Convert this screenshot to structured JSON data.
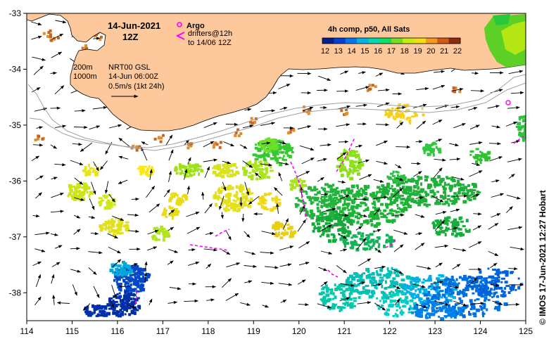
{
  "title": {
    "date": "14-Jun-2021",
    "time": "12Z"
  },
  "legend": {
    "argo_label": "Argo",
    "drifters_label": "drifters@12h",
    "drifters_sub": "to 14/06 12Z",
    "argo_color": "#ff00ff",
    "drifter_color": "#ff00ff"
  },
  "product": {
    "line1a": "200m",
    "line1b": "NRT00 GSL",
    "line2a": "1000m",
    "line2b": "14-Jun 06:00Z",
    "scale_label": "0.5m/s (1kt 24h)"
  },
  "colorbar": {
    "title": "4h comp, p50, All Sats",
    "labels": [
      "12",
      "13",
      "14",
      "15",
      "16",
      "17",
      "18",
      "19",
      "20",
      "21",
      "22"
    ],
    "colors": [
      "#001f8c",
      "#0040d8",
      "#0078f0",
      "#00b4e8",
      "#00d8b0",
      "#10e060",
      "#70e020",
      "#c8ec10",
      "#f4e010",
      "#f49a20",
      "#d45a14",
      "#8c2a0c"
    ]
  },
  "chart_data": {
    "type": "map",
    "xlim": [
      114,
      125
    ],
    "ylim": [
      -38.5,
      -33
    ],
    "x_ticks": [
      "114",
      "115",
      "116",
      "117",
      "118",
      "119",
      "120",
      "121",
      "122",
      "123",
      "124",
      "125"
    ],
    "y_ticks": [
      "-33",
      "-34",
      "-35",
      "-36",
      "-37",
      "-38"
    ],
    "colors": {
      "land": "#fcc89c",
      "isobath": "#a0a0a0",
      "frame": "#000000"
    }
  },
  "credit": "© IMOS 17-Jun-2021 12:27 Hobart"
}
